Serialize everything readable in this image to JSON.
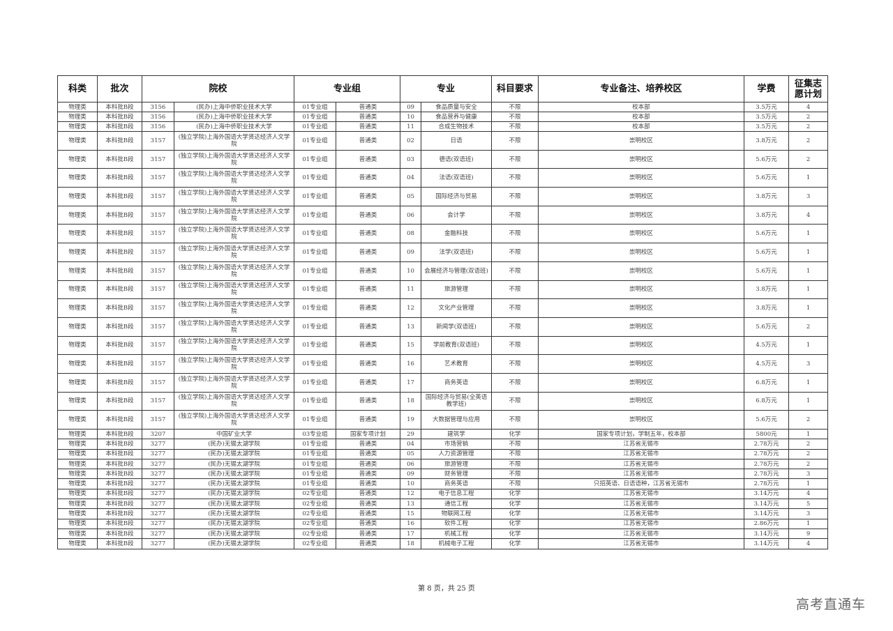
{
  "headers": [
    "科类",
    "批次",
    "院校",
    "专业组",
    "专业",
    "科目要求",
    "专业备注、培养校区",
    "学费",
    "征集志愿计划"
  ],
  "rows": [
    [
      "物理类",
      "本科批B段",
      "3156",
      "(民办)上海中侨职业技术大学",
      "01专业组",
      "普通类",
      "09",
      "食品质量与安全",
      "不限",
      "校本部",
      "3.5万元",
      "4"
    ],
    [
      "物理类",
      "本科批B段",
      "3156",
      "(民办)上海中侨职业技术大学",
      "01专业组",
      "普通类",
      "10",
      "食品营养与健康",
      "不限",
      "校本部",
      "3.5万元",
      "2"
    ],
    [
      "物理类",
      "本科批B段",
      "3156",
      "(民办)上海中侨职业技术大学",
      "01专业组",
      "普通类",
      "11",
      "合成生物技术",
      "不限",
      "校本部",
      "3.5万元",
      "2"
    ],
    [
      "物理类",
      "本科批B段",
      "3157",
      "(独立学院)上海外国语大学贤达经济人文学院",
      "01专业组",
      "普通类",
      "02",
      "日语",
      "不限",
      "崇明校区",
      "3.8万元",
      "2"
    ],
    [
      "物理类",
      "本科批B段",
      "3157",
      "(独立学院)上海外国语大学贤达经济人文学院",
      "01专业组",
      "普通类",
      "03",
      "德语(双语班)",
      "不限",
      "崇明校区",
      "5.6万元",
      "2"
    ],
    [
      "物理类",
      "本科批B段",
      "3157",
      "(独立学院)上海外国语大学贤达经济人文学院",
      "01专业组",
      "普通类",
      "04",
      "法语(双语班)",
      "不限",
      "崇明校区",
      "5.6万元",
      "1"
    ],
    [
      "物理类",
      "本科批B段",
      "3157",
      "(独立学院)上海外国语大学贤达经济人文学院",
      "01专业组",
      "普通类",
      "05",
      "国际经济与贸易",
      "不限",
      "崇明校区",
      "3.8万元",
      "3"
    ],
    [
      "物理类",
      "本科批B段",
      "3157",
      "(独立学院)上海外国语大学贤达经济人文学院",
      "01专业组",
      "普通类",
      "06",
      "会计学",
      "不限",
      "崇明校区",
      "3.8万元",
      "4"
    ],
    [
      "物理类",
      "本科批B段",
      "3157",
      "(独立学院)上海外国语大学贤达经济人文学院",
      "01专业组",
      "普通类",
      "08",
      "金融科技",
      "不限",
      "崇明校区",
      "5.6万元",
      "1"
    ],
    [
      "物理类",
      "本科批B段",
      "3157",
      "(独立学院)上海外国语大学贤达经济人文学院",
      "01专业组",
      "普通类",
      "09",
      "法学(双语班)",
      "不限",
      "崇明校区",
      "5.6万元",
      "1"
    ],
    [
      "物理类",
      "本科批B段",
      "3157",
      "(独立学院)上海外国语大学贤达经济人文学院",
      "01专业组",
      "普通类",
      "10",
      "会展经济与管理(双语班)",
      "不限",
      "崇明校区",
      "5.6万元",
      "1"
    ],
    [
      "物理类",
      "本科批B段",
      "3157",
      "(独立学院)上海外国语大学贤达经济人文学院",
      "01专业组",
      "普通类",
      "11",
      "旅游管理",
      "不限",
      "崇明校区",
      "3.8万元",
      "1"
    ],
    [
      "物理类",
      "本科批B段",
      "3157",
      "(独立学院)上海外国语大学贤达经济人文学院",
      "01专业组",
      "普通类",
      "12",
      "文化产业管理",
      "不限",
      "崇明校区",
      "3.8万元",
      "1"
    ],
    [
      "物理类",
      "本科批B段",
      "3157",
      "(独立学院)上海外国语大学贤达经济人文学院",
      "01专业组",
      "普通类",
      "13",
      "新闻学(双语班)",
      "不限",
      "崇明校区",
      "5.6万元",
      "2"
    ],
    [
      "物理类",
      "本科批B段",
      "3157",
      "(独立学院)上海外国语大学贤达经济人文学院",
      "01专业组",
      "普通类",
      "15",
      "学前教育(双语班)",
      "不限",
      "崇明校区",
      "4.5万元",
      "1"
    ],
    [
      "物理类",
      "本科批B段",
      "3157",
      "(独立学院)上海外国语大学贤达经济人文学院",
      "01专业组",
      "普通类",
      "16",
      "艺术教育",
      "不限",
      "崇明校区",
      "4.5万元",
      "3"
    ],
    [
      "物理类",
      "本科批B段",
      "3157",
      "(独立学院)上海外国语大学贤达经济人文学院",
      "01专业组",
      "普通类",
      "17",
      "商务英语",
      "不限",
      "崇明校区",
      "6.8万元",
      "1"
    ],
    [
      "物理类",
      "本科批B段",
      "3157",
      "(独立学院)上海外国语大学贤达经济人文学院",
      "01专业组",
      "普通类",
      "18",
      "国际经济与贸易(全英语教学班)",
      "不限",
      "崇明校区",
      "6.8万元",
      "1"
    ],
    [
      "物理类",
      "本科批B段",
      "3157",
      "(独立学院)上海外国语大学贤达经济人文学院",
      "01专业组",
      "普通类",
      "19",
      "大数据管理与应用",
      "不限",
      "崇明校区",
      "5.6万元",
      "2"
    ],
    [
      "物理类",
      "本科批B段",
      "3207",
      "中国矿业大学",
      "03专业组",
      "国家专项计划",
      "29",
      "建筑学",
      "化学",
      "国家专项计划，学制五年，校本部",
      "5800元",
      "1"
    ],
    [
      "物理类",
      "本科批B段",
      "3277",
      "(民办)无锡太湖学院",
      "01专业组",
      "普通类",
      "04",
      "市场营销",
      "不限",
      "江苏省无锡市",
      "2.78万元",
      "2"
    ],
    [
      "物理类",
      "本科批B段",
      "3277",
      "(民办)无锡太湖学院",
      "01专业组",
      "普通类",
      "05",
      "人力资源管理",
      "不限",
      "江苏省无锡市",
      "2.78万元",
      "2"
    ],
    [
      "物理类",
      "本科批B段",
      "3277",
      "(民办)无锡太湖学院",
      "01专业组",
      "普通类",
      "06",
      "旅游管理",
      "不限",
      "江苏省无锡市",
      "2.78万元",
      "2"
    ],
    [
      "物理类",
      "本科批B段",
      "3277",
      "(民办)无锡太湖学院",
      "01专业组",
      "普通类",
      "09",
      "财务管理",
      "不限",
      "江苏省无锡市",
      "2.78万元",
      "3"
    ],
    [
      "物理类",
      "本科批B段",
      "3277",
      "(民办)无锡太湖学院",
      "01专业组",
      "普通类",
      "10",
      "商务英语",
      "不限",
      "只招英语、日语语种，江苏省无锡市",
      "2.78万元",
      "1"
    ],
    [
      "物理类",
      "本科批B段",
      "3277",
      "(民办)无锡太湖学院",
      "02专业组",
      "普通类",
      "12",
      "电子信息工程",
      "化学",
      "江苏省无锡市",
      "3.14万元",
      "4"
    ],
    [
      "物理类",
      "本科批B段",
      "3277",
      "(民办)无锡太湖学院",
      "02专业组",
      "普通类",
      "13",
      "通信工程",
      "化学",
      "江苏省无锡市",
      "3.14万元",
      "5"
    ],
    [
      "物理类",
      "本科批B段",
      "3277",
      "(民办)无锡太湖学院",
      "02专业组",
      "普通类",
      "15",
      "物联网工程",
      "化学",
      "江苏省无锡市",
      "3.14万元",
      "3"
    ],
    [
      "物理类",
      "本科批B段",
      "3277",
      "(民办)无锡太湖学院",
      "02专业组",
      "普通类",
      "16",
      "软件工程",
      "化学",
      "江苏省无锡市",
      "2.86万元",
      "1"
    ],
    [
      "物理类",
      "本科批B段",
      "3277",
      "(民办)无锡太湖学院",
      "02专业组",
      "普通类",
      "17",
      "机械工程",
      "化学",
      "江苏省无锡市",
      "3.14万元",
      "9"
    ],
    [
      "物理类",
      "本科批B段",
      "3277",
      "(民办)无锡太湖学院",
      "02专业组",
      "普通类",
      "18",
      "机械电子工程",
      "化学",
      "江苏省无锡市",
      "3.14万元",
      "4"
    ]
  ],
  "footer": "第 8 页，共 25 页",
  "watermark": "高考直通车"
}
